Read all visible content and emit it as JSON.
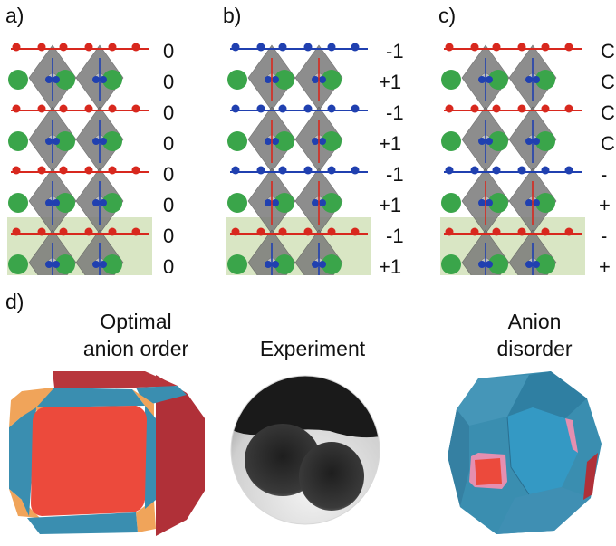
{
  "panels": {
    "a": {
      "label": "a)",
      "charges": [
        "0",
        "0",
        "0",
        "0",
        "0",
        "0",
        "0",
        "0"
      ]
    },
    "b": {
      "label": "b)",
      "charges": [
        "-1",
        "+1",
        "-1",
        "+1",
        "-1",
        "+1",
        "-1",
        "+1"
      ]
    },
    "c": {
      "label": "c)",
      "charges": [
        "C",
        "C",
        "C",
        "C",
        "-",
        "+",
        "-",
        "+"
      ]
    },
    "d": {
      "label": "d)",
      "captions": {
        "optimal": [
          "Optimal",
          "anion order"
        ],
        "experiment": [
          "Experiment"
        ],
        "disorder": [
          "Anion",
          "disorder"
        ]
      }
    }
  },
  "colors": {
    "cation_A": "#3aa54a",
    "anion_red": "#d8281e",
    "anion_blue": "#2040b0",
    "octahedron": "#7a7a7a",
    "highlight": "#d9e6c4",
    "facet_red": "#ec4a3c",
    "facet_blue": "#3a8eb0",
    "facet_orange": "#f0a45a",
    "facet_maroon": "#b03038",
    "facet_pink": "#e58fb0"
  }
}
